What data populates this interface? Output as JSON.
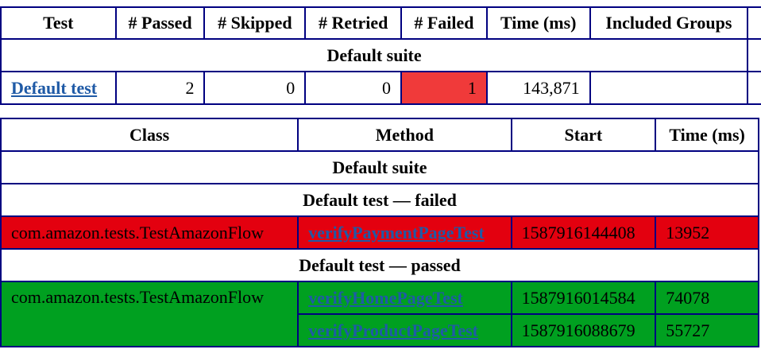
{
  "summary": {
    "headers": [
      "Test",
      "# Passed",
      "# Skipped",
      "# Retried",
      "# Failed",
      "Time (ms)",
      "Included Groups",
      ""
    ],
    "suite_label": "Default suite",
    "row": {
      "test": "Default test",
      "passed": "2",
      "skipped": "0",
      "retried": "0",
      "failed": "1",
      "time": "143,871",
      "groups": ""
    }
  },
  "details": {
    "headers": [
      "Class",
      "Method",
      "Start",
      "Time (ms)"
    ],
    "suite_label": "Default suite",
    "failed_label": "Default test — failed",
    "passed_label": "Default test — passed",
    "failed_rows": [
      {
        "class": "com.amazon.tests.TestAmazonFlow",
        "method": "verifyPaymentPageTest",
        "start": "1587916144408",
        "time": "13952"
      }
    ],
    "passed_class": "com.amazon.tests.TestAmazonFlow",
    "passed_rows": [
      {
        "method": "verifyHomePageTest",
        "start": "1587916014584",
        "time": "74078"
      },
      {
        "method": "verifyProductPageTest",
        "start": "1587916088679",
        "time": "55727"
      }
    ]
  },
  "colors": {
    "border": "#000080",
    "failed": "#e3000f",
    "failed_count": "#f03a3a",
    "passed": "#00a020",
    "link": "#1f5aa6"
  }
}
